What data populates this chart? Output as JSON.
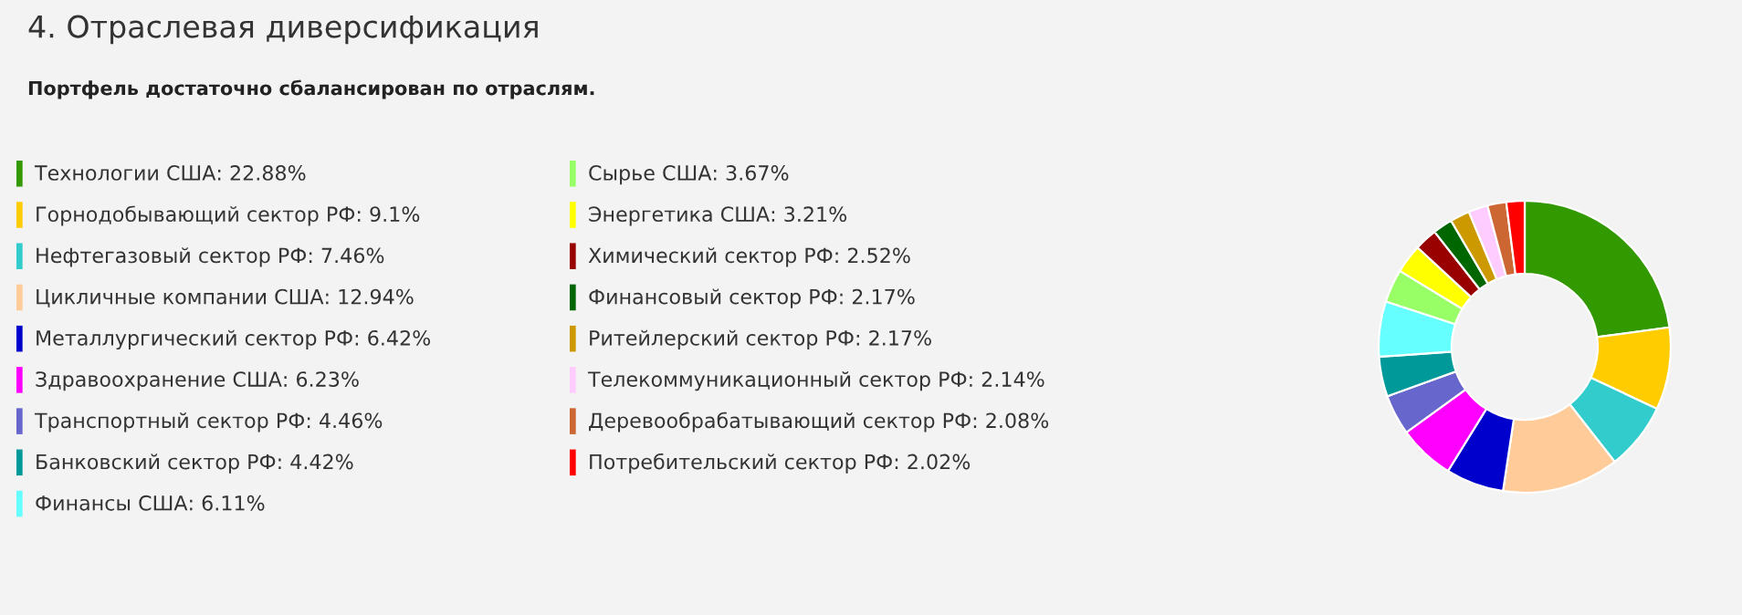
{
  "chart_data": {
    "type": "donut",
    "title": "4. Отраслевая диверсификация",
    "subtitle": "Портфель достаточно сбалансирован по отраслям.",
    "categories": [
      "Технологии США",
      "Горнодобывающий сектор РФ",
      "Нефтегазовый сектор РФ",
      "Цикличные компании США",
      "Металлургический сектор РФ",
      "Здравоохранение США",
      "Транспортный сектор РФ",
      "Банковский сектор РФ",
      "Финансы США",
      "Сырье США",
      "Энергетика США",
      "Химический сектор РФ",
      "Финансовый сектор РФ",
      "Ритейлерский сектор РФ",
      "Телекоммуникационный сектор РФ",
      "Деревообрабатывающий сектор РФ",
      "Потребительский сектор РФ"
    ],
    "values": [
      22.88,
      9.1,
      7.46,
      12.94,
      6.42,
      6.23,
      4.46,
      4.42,
      6.11,
      3.67,
      3.21,
      2.52,
      2.17,
      2.17,
      2.14,
      2.08,
      2.02
    ],
    "value_labels": [
      "22.88%",
      "9.1%",
      "7.46%",
      "12.94%",
      "6.42%",
      "6.23%",
      "4.46%",
      "4.42%",
      "6.11%",
      "3.67%",
      "3.21%",
      "2.52%",
      "2.17%",
      "2.17%",
      "2.14%",
      "2.08%",
      "2.02%"
    ],
    "colors": [
      "#339900",
      "#ffcc00",
      "#33cccc",
      "#ffcc99",
      "#0000cc",
      "#ff00ff",
      "#6666cc",
      "#009999",
      "#66ffff",
      "#99ff66",
      "#ffff00",
      "#990000",
      "#006600",
      "#cc9900",
      "#ffccff",
      "#cc6633",
      "#ff0000"
    ],
    "legend": "left"
  }
}
